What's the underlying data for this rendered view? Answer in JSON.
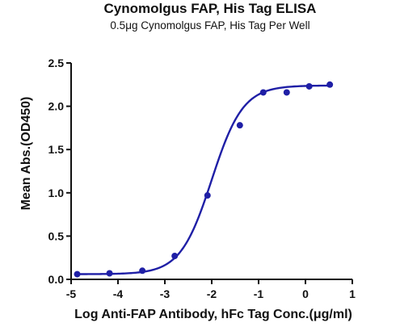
{
  "chart_data": {
    "type": "scatter",
    "title": "Cynomolgus FAP, His Tag ELISA",
    "subtitle": "0.5μg Cynomolgus FAP, His Tag Per Well",
    "xlabel": "Log Anti-FAP Antibody, hFc Tag Conc.(μg/ml)",
    "ylabel": "Mean Abs.(OD450)",
    "xlim": [
      -5,
      1
    ],
    "ylim": [
      0,
      2.5
    ],
    "x_ticks": [
      -5,
      -4,
      -3,
      -2,
      -1,
      0,
      1
    ],
    "y_ticks": [
      0.0,
      0.5,
      1.0,
      1.5,
      2.0,
      2.5
    ],
    "x_tick_labels": [
      "-5",
      "-4",
      "-3",
      "-2",
      "-1",
      "0",
      "1"
    ],
    "y_tick_labels": [
      "0.0",
      "0.5",
      "1.0",
      "1.5",
      "2.0",
      "2.5"
    ],
    "grid": false,
    "series": [
      {
        "x": [
          -4.87,
          -4.18,
          -3.48,
          -2.79,
          -2.09,
          -1.4,
          -0.9,
          -0.4,
          0.08,
          0.52
        ],
        "y": [
          0.06,
          0.07,
          0.1,
          0.27,
          0.97,
          1.78,
          2.16,
          2.16,
          2.23,
          2.25
        ],
        "color": "#1f1fa6"
      }
    ],
    "fit_curve": {
      "model": "4PL",
      "bottom": 0.06,
      "top": 2.24,
      "logEC50": -2.0,
      "hill": 1.3,
      "color": "#1f1fa6"
    }
  }
}
